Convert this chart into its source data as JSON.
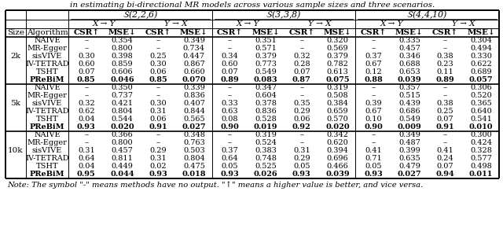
{
  "title_text": "in estimating bi-directional MR models across various sample sizes and three scenarios.",
  "note_text": "Note: The symbol \"-\" means methods have no output. \"↑\" means a higher value is better, and vice versa.",
  "scenarios": [
    "S(2,2,6)",
    "S(3,3,8)",
    "S(4,4,10)"
  ],
  "sizes": [
    "2k",
    "5k",
    "10k"
  ],
  "algorithms": [
    "NAIVE",
    "MR-Egger",
    "sisVIVE",
    "IV-TETRAD",
    "TSHT",
    "PReBiM"
  ],
  "data": {
    "2k": {
      "NAIVE": [
        "-",
        "0.354",
        "-",
        "0.349",
        "-",
        "0.351",
        "-",
        "0.320",
        "-",
        "0.335",
        "-",
        "0.304"
      ],
      "MR-Egger": [
        "-",
        "0.800",
        "-",
        "0.734",
        "-",
        "0.571",
        "-",
        "0.569",
        "-",
        "0.457",
        "-",
        "0.494"
      ],
      "sisVIVE": [
        "0.30",
        "0.398",
        "0.25",
        "0.447",
        "0.34",
        "0.379",
        "0.32",
        "0.379",
        "0.37",
        "0.346",
        "0.38",
        "0.330"
      ],
      "IV-TETRAD": [
        "0.60",
        "0.859",
        "0.30",
        "0.867",
        "0.60",
        "0.773",
        "0.28",
        "0.782",
        "0.67",
        "0.688",
        "0.23",
        "0.622"
      ],
      "TSHT": [
        "0.07",
        "0.606",
        "0.06",
        "0.660",
        "0.07",
        "0.549",
        "0.07",
        "0.613",
        "0.12",
        "0.653",
        "0.11",
        "0.689"
      ],
      "PReBiM": [
        "0.85",
        "0.046",
        "0.85",
        "0.070",
        "0.89",
        "0.083",
        "0.87",
        "0.075",
        "0.88",
        "0.039",
        "0.89",
        "0.057"
      ]
    },
    "5k": {
      "NAIVE": [
        "-",
        "0.350",
        "-",
        "0.339",
        "-",
        "0.347",
        "-",
        "0.319",
        "-",
        "0.357",
        "-",
        "0.306"
      ],
      "MR-Egger": [
        "-",
        "0.737",
        "-",
        "0.836",
        "-",
        "0.604",
        "-",
        "0.508",
        "-",
        "0.515",
        "-",
        "0.520"
      ],
      "sisVIVE": [
        "0.32",
        "0.421",
        "0.30",
        "0.407",
        "0.33",
        "0.378",
        "0.35",
        "0.384",
        "0.39",
        "0.439",
        "0.38",
        "0.365"
      ],
      "IV-TETRAD": [
        "0.62",
        "0.804",
        "0.31",
        "0.844",
        "0.63",
        "0.836",
        "0.29",
        "0.659",
        "0.67",
        "0.686",
        "0.25",
        "0.640"
      ],
      "TSHT": [
        "0.04",
        "0.544",
        "0.06",
        "0.565",
        "0.08",
        "0.528",
        "0.06",
        "0.570",
        "0.10",
        "0.549",
        "0.07",
        "0.541"
      ],
      "PReBiM": [
        "0.93",
        "0.020",
        "0.91",
        "0.027",
        "0.90",
        "0.019",
        "0.92",
        "0.020",
        "0.90",
        "0.009",
        "0.91",
        "0.010"
      ]
    },
    "10k": {
      "NAIVE": [
        "-",
        "0.366",
        "-",
        "0.348",
        "-",
        "0.319",
        "-",
        "0.342",
        "-",
        "0.349",
        "-",
        "0.300"
      ],
      "MR-Egger": [
        "-",
        "0.800",
        "-",
        "0.763",
        "-",
        "0.524",
        "-",
        "0.620",
        "-",
        "0.487",
        "-",
        "0.424"
      ],
      "sisVIVE": [
        "0.31",
        "0.457",
        "0.29",
        "0.503",
        "0.37",
        "0.383",
        "0.31",
        "0.394",
        "0.41",
        "0.399",
        "0.41",
        "0.328"
      ],
      "IV-TETRAD": [
        "0.64",
        "0.811",
        "0.31",
        "0.804",
        "0.64",
        "0.748",
        "0.29",
        "0.696",
        "0.71",
        "0.635",
        "0.24",
        "0.577"
      ],
      "TSHT": [
        "0.04",
        "0.449",
        "0.02",
        "0.475",
        "0.05",
        "0.525",
        "0.05",
        "0.466",
        "0.05",
        "0.479",
        "0.07",
        "0.498"
      ],
      "PReBiM": [
        "0.95",
        "0.044",
        "0.93",
        "0.018",
        "0.93",
        "0.026",
        "0.93",
        "0.039",
        "0.93",
        "0.027",
        "0.94",
        "0.011"
      ]
    }
  },
  "bold_rows": [
    "PReBiM"
  ],
  "col_headers": [
    "CSR↑",
    "MSE↓",
    "CSR↑",
    "MSE↓",
    "CSR↑",
    "MSE↓",
    "CSR↑",
    "MSE↓",
    "CSR↑",
    "MSE↓",
    "CSR↑",
    "MSE↓"
  ]
}
